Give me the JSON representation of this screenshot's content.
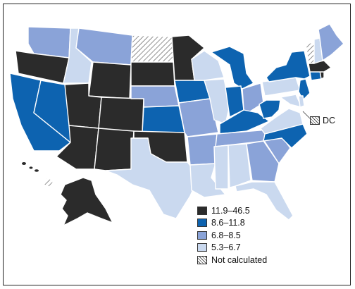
{
  "legend": {
    "items": [
      {
        "label": "11.9–46.5",
        "color": "#2b2b2b"
      },
      {
        "label": "8.6–11.8",
        "color": "#0d63b0"
      },
      {
        "label": "6.8–8.5",
        "color": "#8aa3d8"
      },
      {
        "label": "5.3–6.7",
        "color": "#cad9ef"
      },
      {
        "label": "Not calculated",
        "color": "hatch"
      }
    ]
  },
  "dc_label": "DC",
  "states": [
    {
      "id": "WA",
      "cat": 2
    },
    {
      "id": "OR",
      "cat": 0
    },
    {
      "id": "CA",
      "cat": 1
    },
    {
      "id": "ID",
      "cat": 3
    },
    {
      "id": "NV",
      "cat": 1
    },
    {
      "id": "MT",
      "cat": 2
    },
    {
      "id": "WY",
      "cat": 0
    },
    {
      "id": "UT",
      "cat": 0
    },
    {
      "id": "AZ",
      "cat": 0
    },
    {
      "id": "CO",
      "cat": 0
    },
    {
      "id": "NM",
      "cat": 0
    },
    {
      "id": "ND",
      "cat": 4
    },
    {
      "id": "SD",
      "cat": 0
    },
    {
      "id": "NE",
      "cat": 2
    },
    {
      "id": "KS",
      "cat": 1
    },
    {
      "id": "OK",
      "cat": 0
    },
    {
      "id": "TX",
      "cat": 3
    },
    {
      "id": "MN",
      "cat": 0
    },
    {
      "id": "IA",
      "cat": 1
    },
    {
      "id": "MO",
      "cat": 2
    },
    {
      "id": "AR",
      "cat": 2
    },
    {
      "id": "LA",
      "cat": 3
    },
    {
      "id": "WI",
      "cat": 3
    },
    {
      "id": "IL",
      "cat": 3
    },
    {
      "id": "MI",
      "cat": 1
    },
    {
      "id": "IN",
      "cat": 1
    },
    {
      "id": "OH",
      "cat": 2
    },
    {
      "id": "KY",
      "cat": 1
    },
    {
      "id": "TN",
      "cat": 2
    },
    {
      "id": "MS",
      "cat": 3
    },
    {
      "id": "AL",
      "cat": 3
    },
    {
      "id": "GA",
      "cat": 2
    },
    {
      "id": "FL",
      "cat": 3
    },
    {
      "id": "SC",
      "cat": 2
    },
    {
      "id": "NC",
      "cat": 1
    },
    {
      "id": "VA",
      "cat": 3
    },
    {
      "id": "WV",
      "cat": 1
    },
    {
      "id": "PA",
      "cat": 3
    },
    {
      "id": "NY",
      "cat": 1
    },
    {
      "id": "NJ",
      "cat": 1
    },
    {
      "id": "MD",
      "cat": 3
    },
    {
      "id": "DE",
      "cat": 3
    },
    {
      "id": "CT",
      "cat": 1
    },
    {
      "id": "RI",
      "cat": 0
    },
    {
      "id": "MA",
      "cat": 0
    },
    {
      "id": "VT",
      "cat": 4
    },
    {
      "id": "NH",
      "cat": 3
    },
    {
      "id": "ME",
      "cat": 2
    },
    {
      "id": "AK",
      "cat": 0
    },
    {
      "id": "HI",
      "cat": 4
    }
  ]
}
